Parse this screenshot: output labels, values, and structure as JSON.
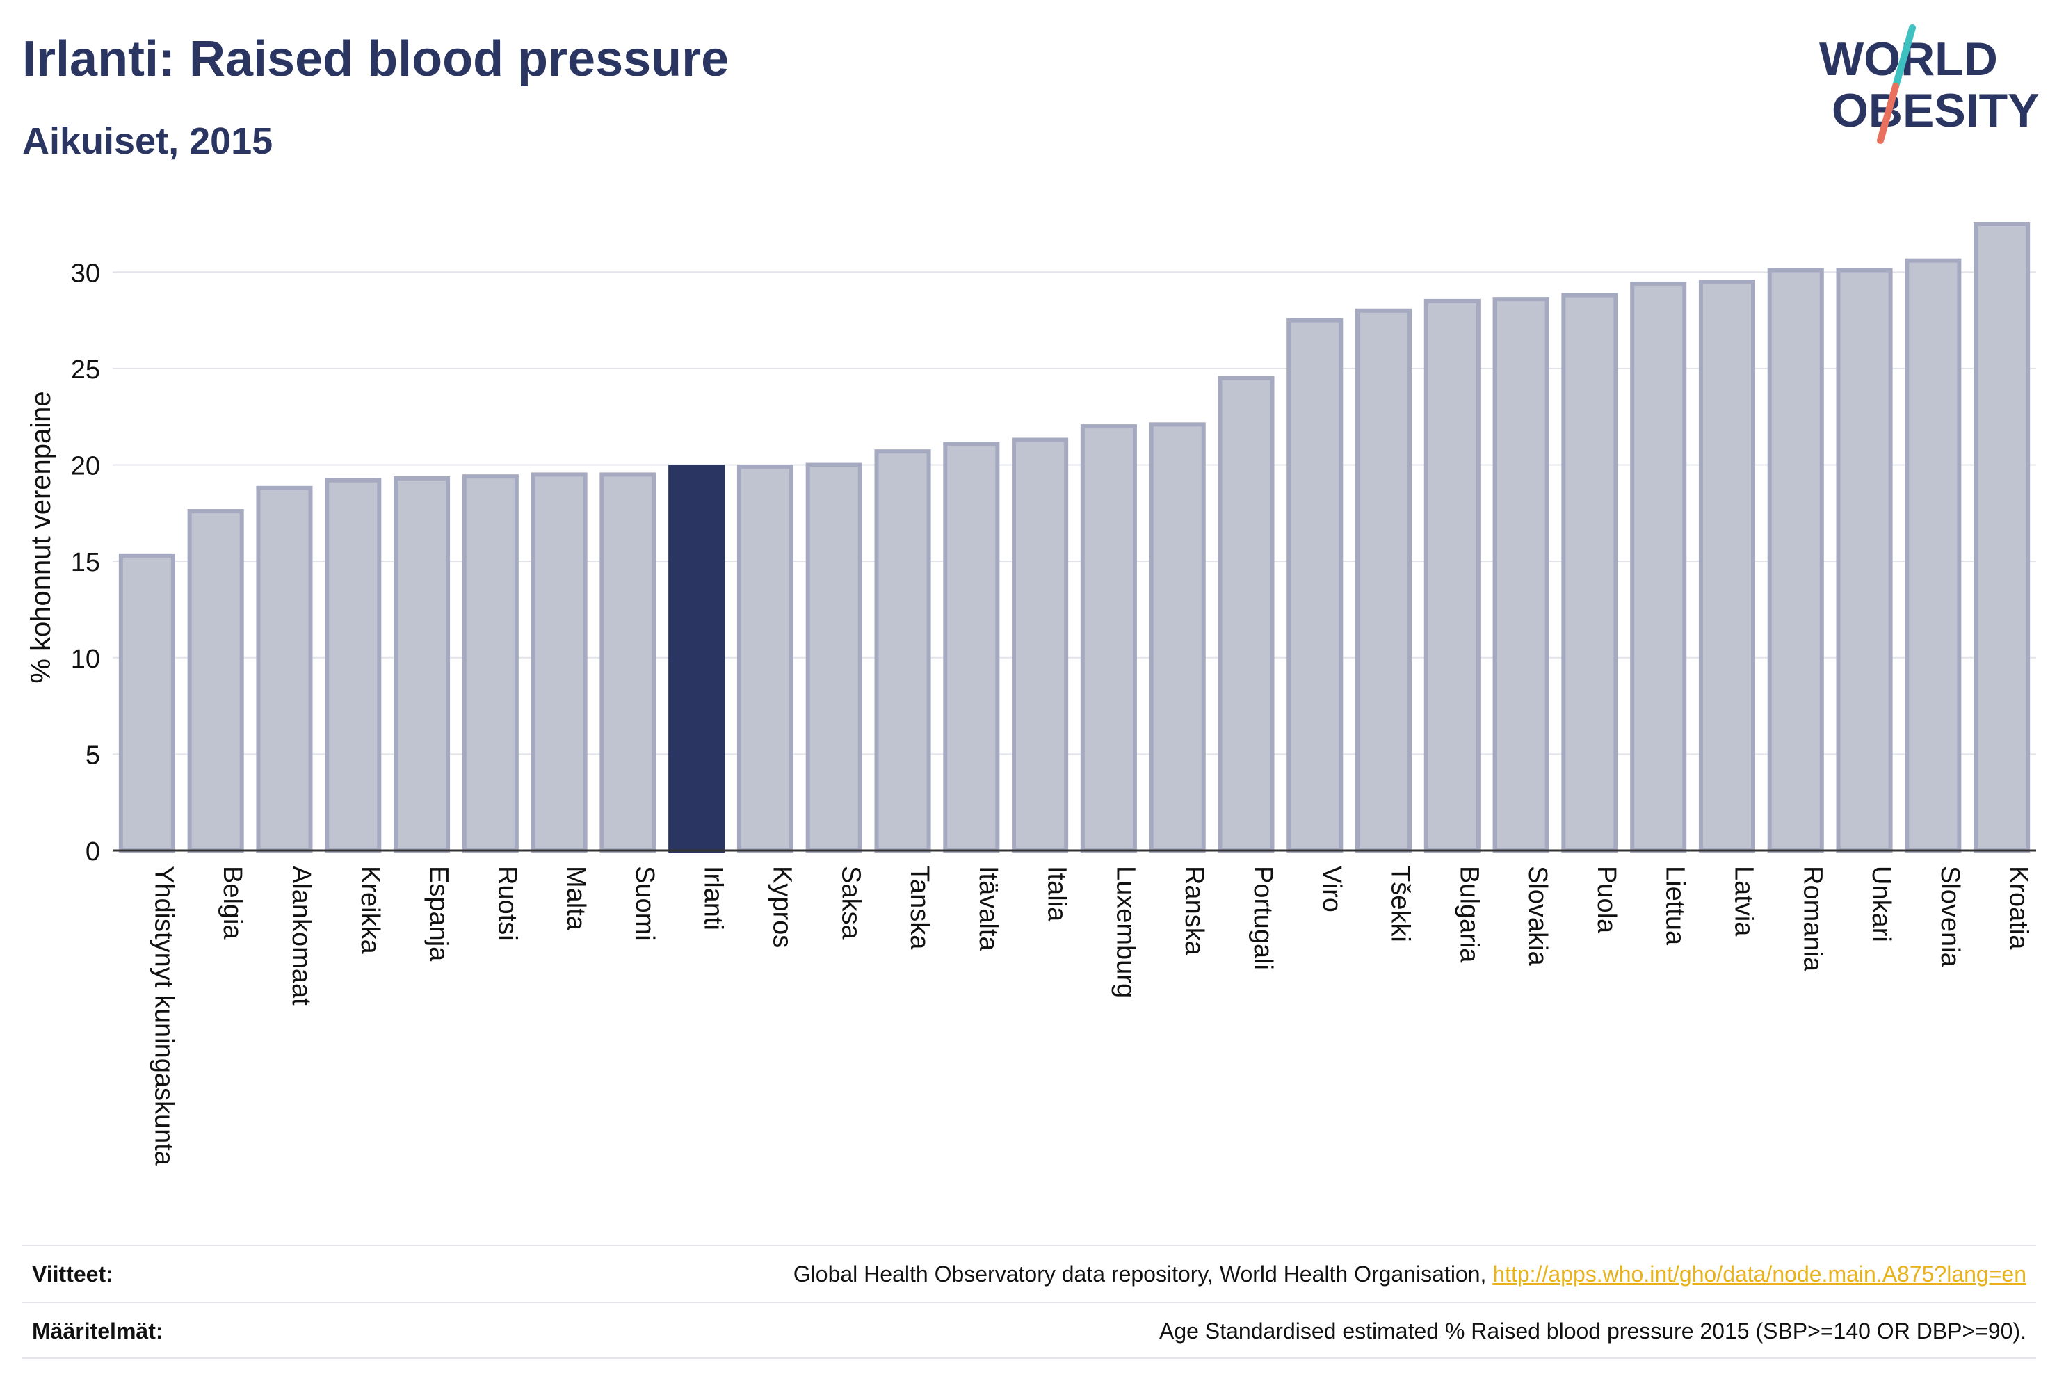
{
  "header": {
    "title": "Irlanti: Raised blood pressure",
    "subtitle": "Aikuiset, 2015"
  },
  "logo": {
    "line1": "WORLD",
    "line2": "OBESITY"
  },
  "colors": {
    "highlight": "#2a3561",
    "bar_fill": "#c0c3d0",
    "bar_stroke": "#a6aac0",
    "accent_teal": "#3ec1c1",
    "accent_coral": "#e8705c",
    "link": "#e8b21a"
  },
  "chart_data": {
    "type": "bar",
    "title": "Irlanti: Raised blood pressure",
    "subtitle": "Aikuiset, 2015",
    "xlabel": "",
    "ylabel": "% kohonnut verenpaine",
    "ylim": [
      0,
      32.5
    ],
    "yticks": [
      0,
      5,
      10,
      15,
      20,
      25,
      30
    ],
    "grid": true,
    "highlight": "Irlanti",
    "categories": [
      "Yhdistynyt kuningaskunta",
      "Belgia",
      "Alankomaat",
      "Kreikka",
      "Espanja",
      "Ruotsi",
      "Malta",
      "Suomi",
      "Irlanti",
      "Kypros",
      "Saksa",
      "Tanska",
      "Itävalta",
      "Italia",
      "Luxemburg",
      "Ranska",
      "Portugali",
      "Viro",
      "Tšekki",
      "Bulgaria",
      "Slovakia",
      "Puola",
      "Liettua",
      "Latvia",
      "Romania",
      "Unkari",
      "Slovenia",
      "Kroatia"
    ],
    "values": [
      15.3,
      17.6,
      18.8,
      19.2,
      19.3,
      19.4,
      19.5,
      19.5,
      19.9,
      19.9,
      20.0,
      20.7,
      21.1,
      21.3,
      22.0,
      22.1,
      24.5,
      27.5,
      28.0,
      28.5,
      28.6,
      28.8,
      29.4,
      29.5,
      30.1,
      30.1,
      30.6,
      32.5
    ]
  },
  "footer": {
    "sources_label": "Viitteet:",
    "sources_text": "Global Health Observatory data repository, World Health Organisation, ",
    "sources_link": "http://apps.who.int/gho/data/node.main.A875?lang=en",
    "definitions_label": "Määritelmät:",
    "definitions_text": "Age Standardised estimated % Raised blood pressure 2015 (SBP>=140 OR DBP>=90)."
  }
}
